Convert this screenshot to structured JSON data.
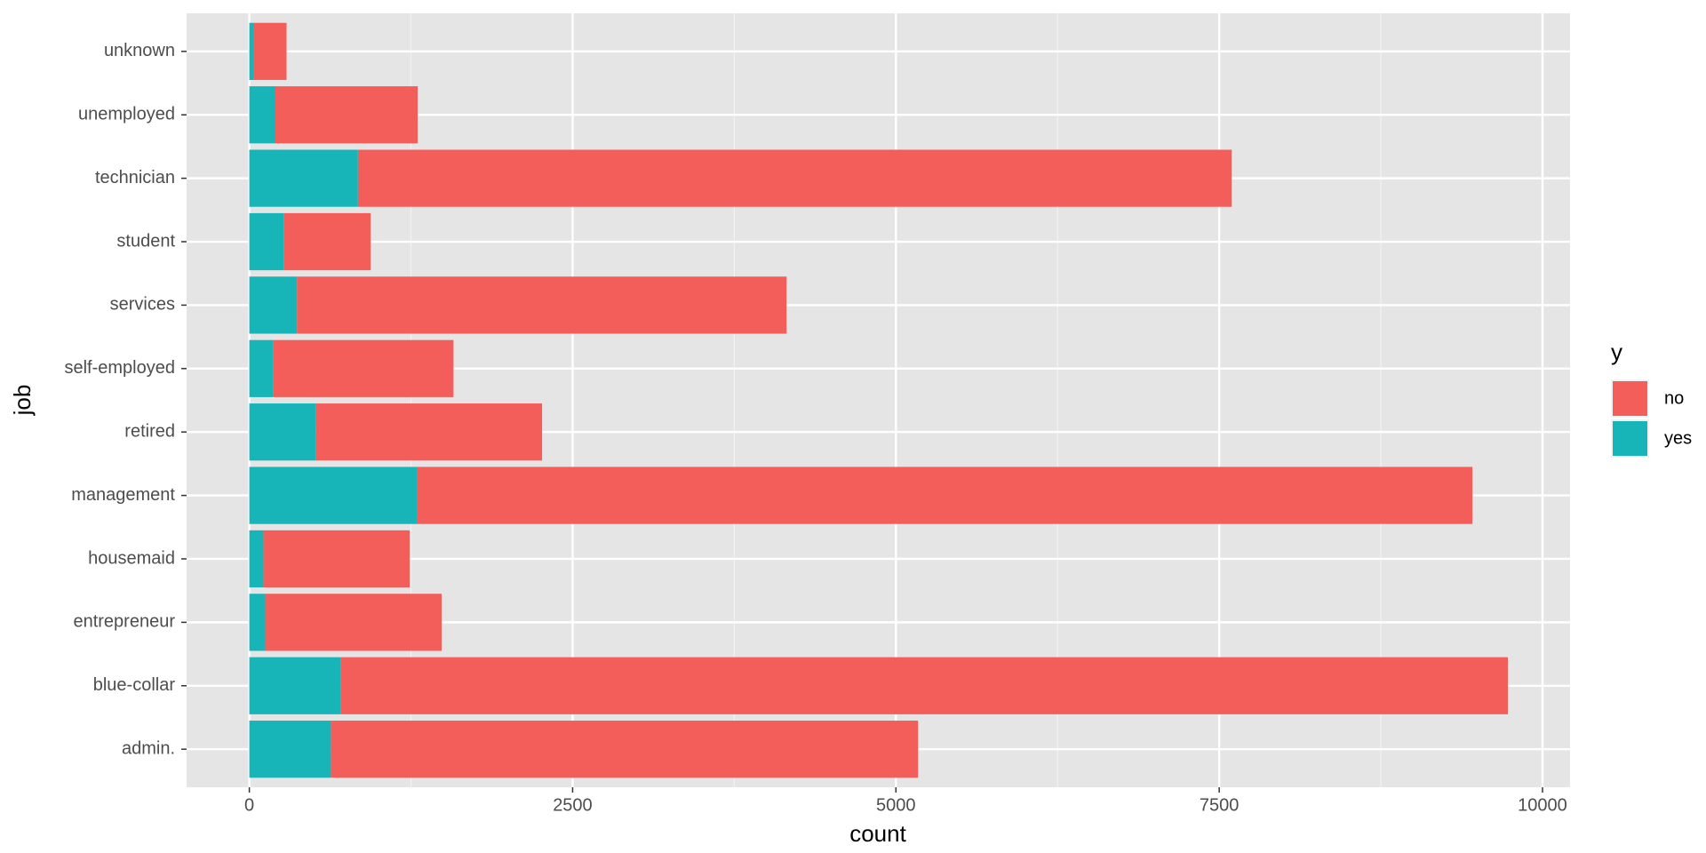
{
  "chart_data": {
    "type": "bar",
    "orientation": "horizontal",
    "stacked": true,
    "xlabel": "count",
    "ylabel": "job",
    "legend_title": "y",
    "legend_position": "right",
    "grid": true,
    "categories": [
      "admin.",
      "blue-collar",
      "entrepreneur",
      "housemaid",
      "management",
      "retired",
      "self-employed",
      "services",
      "student",
      "technician",
      "unemployed",
      "unknown"
    ],
    "series": [
      {
        "name": "yes",
        "color": "#17b5b8",
        "values": [
          631,
          708,
          123,
          109,
          1301,
          516,
          187,
          369,
          269,
          840,
          202,
          34
        ]
      },
      {
        "name": "no",
        "color": "#f35e5a",
        "values": [
          4540,
          9024,
          1364,
          1131,
          8157,
          1748,
          1392,
          3785,
          669,
          6757,
          1101,
          254
        ]
      }
    ],
    "xlim": [
      -485,
      10213
    ],
    "xticks": [
      0,
      2500,
      5000,
      7500,
      10000
    ]
  }
}
